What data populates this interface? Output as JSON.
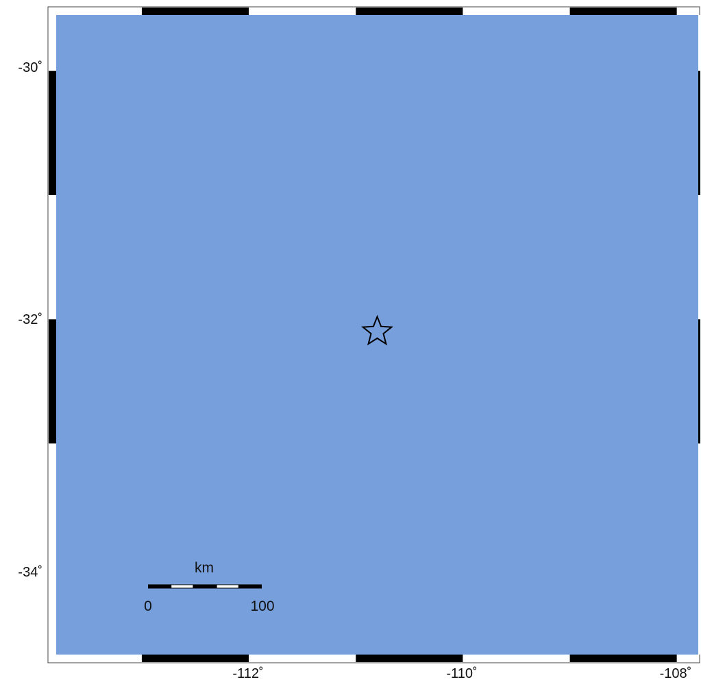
{
  "map": {
    "ocean_color": "#779fdb",
    "frame_black": "#000000",
    "frame_white": "#ffffff",
    "lon_range": [
      -113.8,
      -107.8
    ],
    "lat_range": [
      -34.7,
      -29.55
    ],
    "lon_ticks": [
      {
        "value": -112,
        "label": "-112˚"
      },
      {
        "value": -110,
        "label": "-110˚"
      },
      {
        "value": -108,
        "label": "-108˚"
      }
    ],
    "lat_ticks": [
      {
        "value": -30,
        "label": "-30˚"
      },
      {
        "value": -32,
        "label": "-32˚"
      },
      {
        "value": -34,
        "label": "-34˚"
      }
    ],
    "epicenter": {
      "lon": -110.8,
      "lat": -32.1,
      "symbol": "star-icon"
    },
    "scale_bar": {
      "unit_label": "km",
      "start_label": "0",
      "end_label": "100",
      "length_km": 100,
      "segments": 5
    }
  }
}
